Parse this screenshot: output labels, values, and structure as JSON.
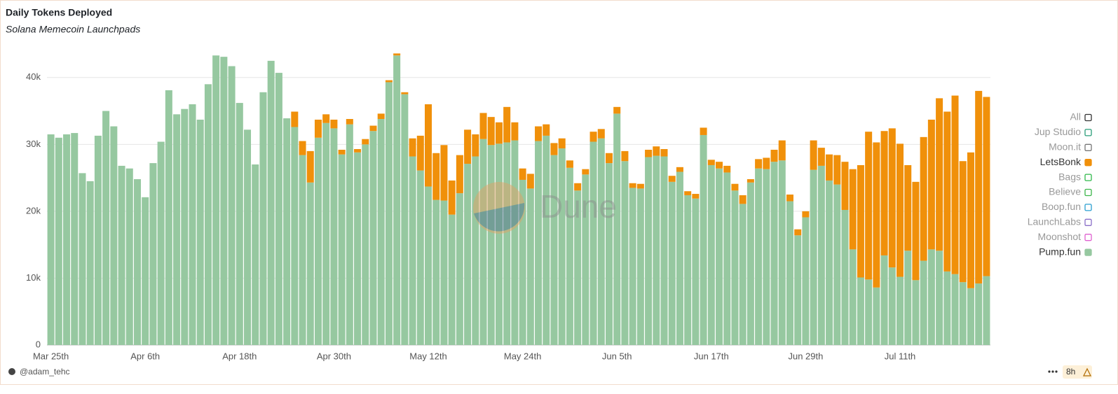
{
  "chart_data": {
    "type": "stacked_bar",
    "title": "Daily Tokens Deployed",
    "subtitle": "Solana Memecoin Launchpads",
    "watermark": "Dune",
    "author": "@adam_tehc",
    "age": "8h",
    "legend_all": "All",
    "legend_position": "right",
    "grid": true,
    "ylim": [
      0,
      45000
    ],
    "yticks": [
      0,
      {
        "value": 10000,
        "label": "10k"
      },
      {
        "value": 20000,
        "label": "20k"
      },
      {
        "value": 30000,
        "label": "30k"
      },
      {
        "value": 40000,
        "label": "40k"
      }
    ],
    "categories": [
      "Mar 25th",
      null,
      null,
      null,
      null,
      null,
      null,
      null,
      null,
      null,
      null,
      null,
      "Apr 6th",
      null,
      null,
      null,
      null,
      null,
      null,
      null,
      null,
      null,
      null,
      null,
      "Apr 18th",
      null,
      null,
      null,
      null,
      null,
      null,
      null,
      null,
      null,
      null,
      null,
      "Apr 30th",
      null,
      null,
      null,
      null,
      null,
      null,
      null,
      null,
      null,
      null,
      null,
      "May 12th",
      null,
      null,
      null,
      null,
      null,
      null,
      null,
      null,
      null,
      null,
      null,
      "May 24th",
      null,
      null,
      null,
      null,
      null,
      null,
      null,
      null,
      null,
      null,
      null,
      "Jun 5th",
      null,
      null,
      null,
      null,
      null,
      null,
      null,
      null,
      null,
      null,
      null,
      "Jun 17th",
      null,
      null,
      null,
      null,
      null,
      null,
      null,
      null,
      null,
      null,
      null,
      "Jun 29th",
      null,
      null,
      null,
      null,
      null,
      null,
      null,
      null,
      null,
      null,
      null,
      "Jul 11th",
      null,
      null,
      null,
      null,
      null,
      null,
      null,
      null,
      null,
      null,
      null
    ],
    "series": [
      {
        "name": "Jup Studio",
        "color": "#2a9d78",
        "visible": false
      },
      {
        "name": "Moon.it",
        "color": "#777777",
        "visible": false
      },
      {
        "name": "LetsBonk",
        "color": "#f0900a",
        "visible": true,
        "values": [
          0,
          0,
          0,
          0,
          0,
          0,
          0,
          0,
          0,
          0,
          0,
          0,
          0,
          0,
          0,
          0,
          0,
          0,
          0,
          0,
          0,
          0,
          0,
          0,
          0,
          0,
          0,
          0,
          0,
          0,
          0,
          2300,
          2100,
          4700,
          2700,
          1300,
          1300,
          700,
          800,
          500,
          800,
          800,
          800,
          300,
          300,
          300,
          2700,
          5200,
          12300,
          7000,
          8300,
          5100,
          5700,
          5100,
          3300,
          3900,
          4200,
          3200,
          5300,
          2700,
          1700,
          2200,
          2200,
          1700,
          1800,
          1500,
          1100,
          1100,
          800,
          1500,
          1400,
          1500,
          1000,
          1500,
          700,
          700,
          1100,
          1400,
          1100,
          900,
          700,
          600,
          700,
          1100,
          800,
          1000,
          1000,
          1000,
          1300,
          500,
          1400,
          1700,
          1800,
          3000,
          1000,
          900,
          900,
          4400,
          2700,
          3900,
          4400,
          7200,
          12000,
          16800,
          22100,
          21700,
          18600,
          20800,
          19900,
          12800,
          14700,
          18500,
          19400,
          22800,
          23900,
          26700,
          18100,
          20300,
          28800,
          26800
        ]
      },
      {
        "name": "Bags",
        "color": "#2fb84a",
        "visible": false
      },
      {
        "name": "Believe",
        "color": "#3cb54a",
        "visible": false
      },
      {
        "name": "Boop.fun",
        "color": "#2a9fd0",
        "visible": false
      },
      {
        "name": "LaunchLabs",
        "color": "#8a6fc8",
        "visible": false
      },
      {
        "name": "Moonshot",
        "color": "#e060d0",
        "visible": false
      },
      {
        "name": "Pump.fun",
        "color": "#96c8a0",
        "visible": true,
        "values": [
          31500,
          31000,
          31500,
          31700,
          25700,
          24500,
          31300,
          35000,
          32700,
          26800,
          26400,
          24800,
          22100,
          27200,
          30400,
          38100,
          34500,
          35300,
          36000,
          33700,
          39000,
          43300,
          43100,
          41700,
          36200,
          32200,
          27000,
          37800,
          42500,
          40700,
          33900,
          32600,
          28400,
          24300,
          31000,
          33200,
          32400,
          28500,
          33000,
          28800,
          30000,
          32000,
          33800,
          39300,
          43300,
          37500,
          28200,
          26100,
          23700,
          21700,
          21600,
          19500,
          22700,
          27100,
          28200,
          30800,
          29900,
          30100,
          30300,
          30600,
          24700,
          23400,
          30500,
          31300,
          28400,
          29400,
          26500,
          23100,
          25500,
          30400,
          30900,
          27200,
          34600,
          27500,
          23500,
          23400,
          28100,
          28300,
          28200,
          24400,
          25900,
          22400,
          21900,
          31400,
          26900,
          26400,
          25800,
          23100,
          21100,
          24300,
          26400,
          26300,
          27400,
          27600,
          21500,
          16400,
          19100,
          26200,
          26800,
          24600,
          24000,
          20200,
          14300,
          10100,
          9800,
          8600,
          13400,
          11600,
          10200,
          14100,
          9700,
          12600,
          14300,
          14100,
          11000,
          10600,
          9400,
          8500,
          9200,
          10300
        ]
      }
    ]
  }
}
